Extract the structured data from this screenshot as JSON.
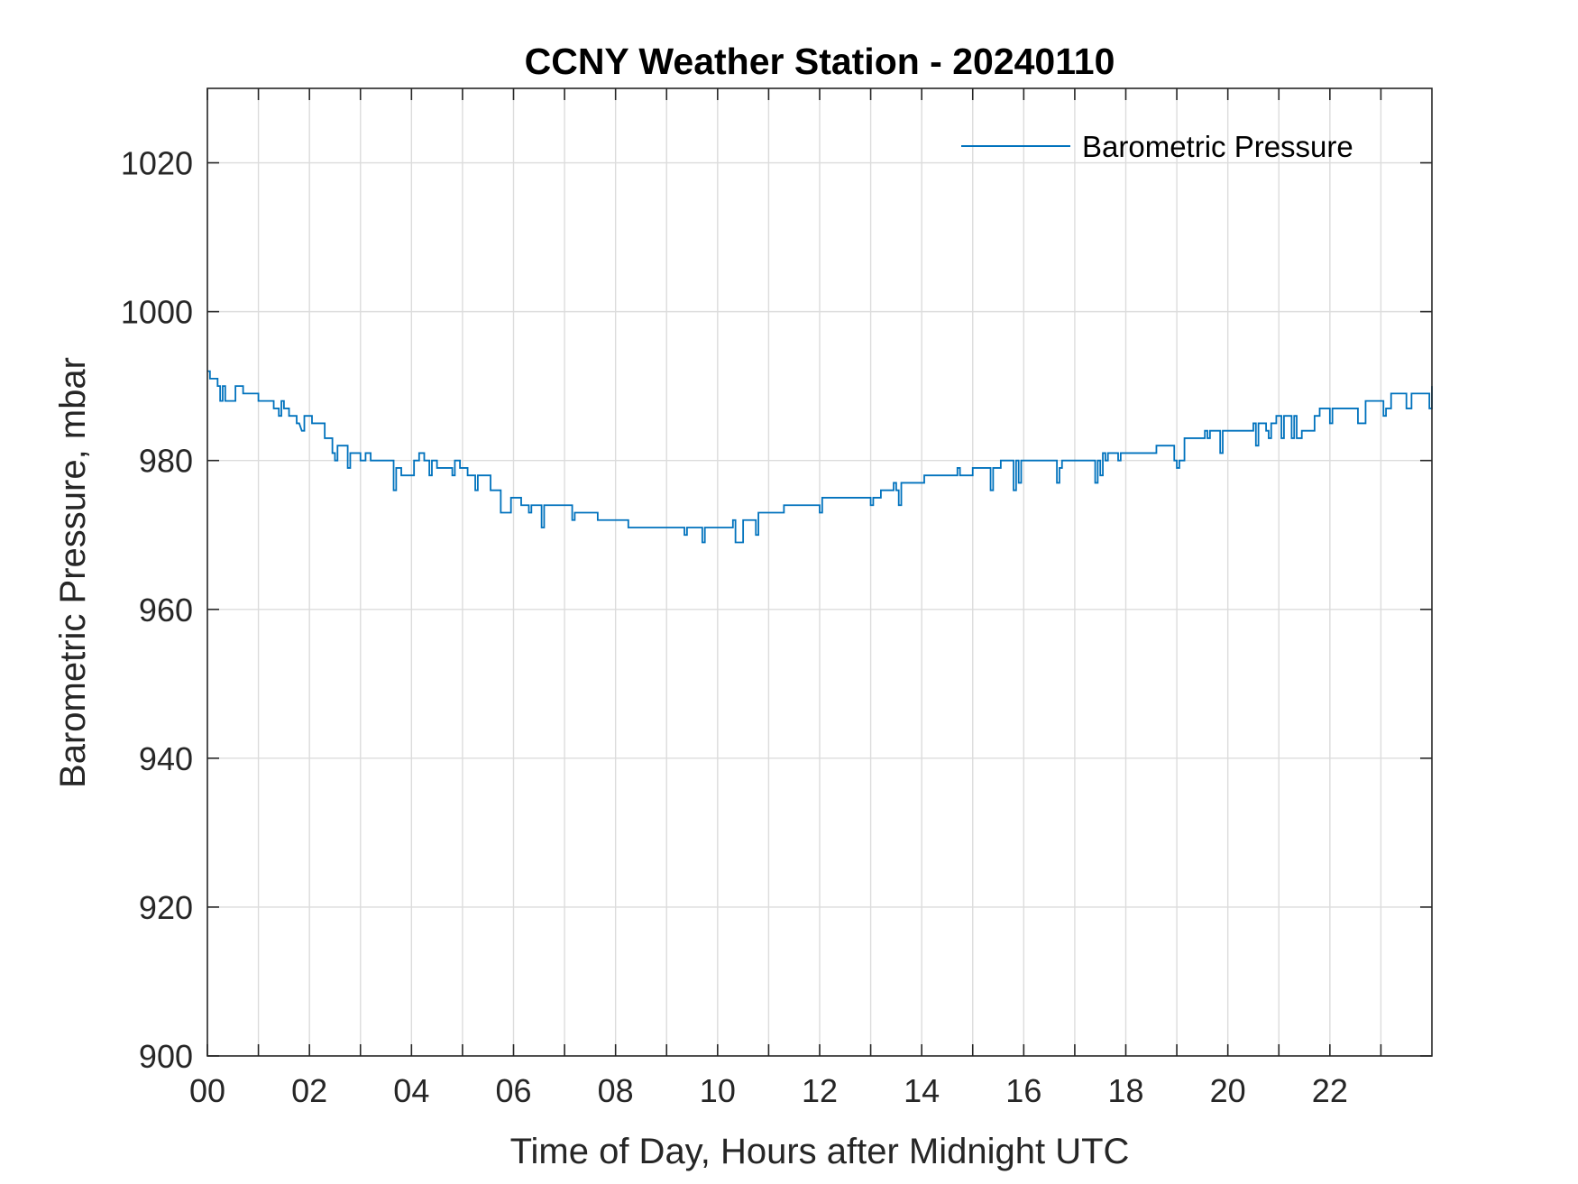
{
  "chart_data": {
    "type": "line",
    "title": "CCNY Weather Station - 20240110",
    "xlabel": "Time of Day, Hours after Midnight UTC",
    "ylabel": "Barometric Pressure, mbar",
    "xlim": [
      0,
      24
    ],
    "ylim": [
      900,
      1030
    ],
    "x_ticks": [
      0,
      2,
      4,
      6,
      8,
      10,
      12,
      14,
      16,
      18,
      20,
      22
    ],
    "x_tick_labels": [
      "00",
      "02",
      "04",
      "06",
      "08",
      "10",
      "12",
      "14",
      "16",
      "18",
      "20",
      "22"
    ],
    "x_minor_grid": [
      1,
      3,
      5,
      7,
      9,
      11,
      13,
      15,
      17,
      19,
      21,
      23
    ],
    "y_ticks": [
      900,
      920,
      940,
      960,
      980,
      1000,
      1020
    ],
    "y_tick_labels": [
      "900",
      "920",
      "940",
      "960",
      "980",
      "1000",
      "1020"
    ],
    "grid": true,
    "legend": {
      "position": "top-right",
      "entries": [
        "Barometric Pressure"
      ]
    },
    "series": [
      {
        "name": "Barometric Pressure",
        "color": "#0072BD",
        "points": [
          [
            0.0,
            992
          ],
          [
            0.05,
            992
          ],
          [
            0.05,
            991
          ],
          [
            0.2,
            991
          ],
          [
            0.2,
            990
          ],
          [
            0.25,
            990
          ],
          [
            0.25,
            988
          ],
          [
            0.3,
            988
          ],
          [
            0.3,
            990
          ],
          [
            0.35,
            990
          ],
          [
            0.35,
            988
          ],
          [
            0.55,
            988
          ],
          [
            0.55,
            990
          ],
          [
            0.7,
            990
          ],
          [
            0.7,
            989
          ],
          [
            1.0,
            989
          ],
          [
            1.0,
            988
          ],
          [
            1.3,
            988
          ],
          [
            1.3,
            987
          ],
          [
            1.4,
            987
          ],
          [
            1.4,
            986
          ],
          [
            1.45,
            986
          ],
          [
            1.45,
            988
          ],
          [
            1.5,
            988
          ],
          [
            1.5,
            987
          ],
          [
            1.6,
            987
          ],
          [
            1.6,
            986
          ],
          [
            1.75,
            986
          ],
          [
            1.75,
            985
          ],
          [
            1.8,
            985
          ],
          [
            1.85,
            984
          ],
          [
            1.9,
            984
          ],
          [
            1.9,
            986
          ],
          [
            2.05,
            986
          ],
          [
            2.05,
            985
          ],
          [
            2.3,
            985
          ],
          [
            2.3,
            983
          ],
          [
            2.45,
            983
          ],
          [
            2.45,
            981
          ],
          [
            2.5,
            981
          ],
          [
            2.5,
            980
          ],
          [
            2.55,
            980
          ],
          [
            2.55,
            982
          ],
          [
            2.75,
            982
          ],
          [
            2.75,
            979
          ],
          [
            2.8,
            979
          ],
          [
            2.8,
            981
          ],
          [
            3.0,
            981
          ],
          [
            3.0,
            980
          ],
          [
            3.1,
            980
          ],
          [
            3.1,
            981
          ],
          [
            3.2,
            981
          ],
          [
            3.2,
            980
          ],
          [
            3.65,
            980
          ],
          [
            3.65,
            976
          ],
          [
            3.7,
            976
          ],
          [
            3.7,
            979
          ],
          [
            3.8,
            979
          ],
          [
            3.8,
            978
          ],
          [
            4.05,
            978
          ],
          [
            4.05,
            980
          ],
          [
            4.15,
            980
          ],
          [
            4.15,
            981
          ],
          [
            4.25,
            981
          ],
          [
            4.25,
            980
          ],
          [
            4.35,
            980
          ],
          [
            4.35,
            978
          ],
          [
            4.4,
            978
          ],
          [
            4.4,
            980
          ],
          [
            4.5,
            980
          ],
          [
            4.5,
            979
          ],
          [
            4.8,
            979
          ],
          [
            4.8,
            978
          ],
          [
            4.85,
            978
          ],
          [
            4.85,
            980
          ],
          [
            4.95,
            980
          ],
          [
            4.95,
            979
          ],
          [
            5.1,
            979
          ],
          [
            5.1,
            978
          ],
          [
            5.25,
            978
          ],
          [
            5.25,
            976
          ],
          [
            5.3,
            976
          ],
          [
            5.3,
            978
          ],
          [
            5.55,
            978
          ],
          [
            5.55,
            976
          ],
          [
            5.75,
            976
          ],
          [
            5.75,
            973
          ],
          [
            5.95,
            973
          ],
          [
            5.95,
            975
          ],
          [
            6.15,
            975
          ],
          [
            6.15,
            974
          ],
          [
            6.3,
            974
          ],
          [
            6.3,
            973
          ],
          [
            6.35,
            973
          ],
          [
            6.35,
            974
          ],
          [
            6.55,
            974
          ],
          [
            6.55,
            971
          ],
          [
            6.6,
            971
          ],
          [
            6.6,
            974
          ],
          [
            7.15,
            974
          ],
          [
            7.15,
            972
          ],
          [
            7.2,
            972
          ],
          [
            7.2,
            973
          ],
          [
            7.65,
            973
          ],
          [
            7.65,
            972
          ],
          [
            8.25,
            972
          ],
          [
            8.25,
            971
          ],
          [
            9.35,
            971
          ],
          [
            9.35,
            970
          ],
          [
            9.4,
            970
          ],
          [
            9.4,
            971
          ],
          [
            9.7,
            971
          ],
          [
            9.7,
            969
          ],
          [
            9.75,
            969
          ],
          [
            9.75,
            971
          ],
          [
            10.3,
            971
          ],
          [
            10.3,
            972
          ],
          [
            10.35,
            972
          ],
          [
            10.35,
            969
          ],
          [
            10.5,
            969
          ],
          [
            10.5,
            972
          ],
          [
            10.75,
            972
          ],
          [
            10.75,
            970
          ],
          [
            10.8,
            970
          ],
          [
            10.8,
            973
          ],
          [
            11.3,
            973
          ],
          [
            11.3,
            974
          ],
          [
            12.0,
            974
          ],
          [
            12.0,
            973
          ],
          [
            12.05,
            973
          ],
          [
            12.05,
            975
          ],
          [
            13.0,
            975
          ],
          [
            13.0,
            974
          ],
          [
            13.05,
            974
          ],
          [
            13.05,
            975
          ],
          [
            13.2,
            975
          ],
          [
            13.2,
            976
          ],
          [
            13.45,
            976
          ],
          [
            13.45,
            977
          ],
          [
            13.5,
            977
          ],
          [
            13.5,
            976
          ],
          [
            13.55,
            976
          ],
          [
            13.55,
            974
          ],
          [
            13.6,
            974
          ],
          [
            13.6,
            977
          ],
          [
            14.05,
            977
          ],
          [
            14.05,
            978
          ],
          [
            14.7,
            978
          ],
          [
            14.7,
            979
          ],
          [
            14.75,
            979
          ],
          [
            14.75,
            978
          ],
          [
            15.0,
            978
          ],
          [
            15.0,
            979
          ],
          [
            15.35,
            979
          ],
          [
            15.35,
            976
          ],
          [
            15.4,
            976
          ],
          [
            15.4,
            979
          ],
          [
            15.55,
            979
          ],
          [
            15.55,
            980
          ],
          [
            15.8,
            980
          ],
          [
            15.8,
            976
          ],
          [
            15.85,
            976
          ],
          [
            15.85,
            980
          ],
          [
            15.9,
            980
          ],
          [
            15.9,
            977
          ],
          [
            15.95,
            977
          ],
          [
            15.95,
            980
          ],
          [
            16.65,
            980
          ],
          [
            16.65,
            977
          ],
          [
            16.7,
            977
          ],
          [
            16.7,
            979
          ],
          [
            16.75,
            979
          ],
          [
            16.75,
            980
          ],
          [
            17.4,
            980
          ],
          [
            17.4,
            977
          ],
          [
            17.45,
            977
          ],
          [
            17.45,
            980
          ],
          [
            17.5,
            980
          ],
          [
            17.5,
            978
          ],
          [
            17.55,
            978
          ],
          [
            17.55,
            981
          ],
          [
            17.6,
            981
          ],
          [
            17.6,
            980
          ],
          [
            17.65,
            980
          ],
          [
            17.65,
            981
          ],
          [
            17.85,
            981
          ],
          [
            17.85,
            980
          ],
          [
            17.9,
            980
          ],
          [
            17.9,
            981
          ],
          [
            18.6,
            981
          ],
          [
            18.6,
            982
          ],
          [
            18.95,
            982
          ],
          [
            18.95,
            980
          ],
          [
            19.0,
            980
          ],
          [
            19.0,
            979
          ],
          [
            19.05,
            979
          ],
          [
            19.05,
            980
          ],
          [
            19.15,
            980
          ],
          [
            19.15,
            983
          ],
          [
            19.55,
            983
          ],
          [
            19.55,
            984
          ],
          [
            19.6,
            984
          ],
          [
            19.6,
            983
          ],
          [
            19.65,
            983
          ],
          [
            19.65,
            984
          ],
          [
            19.85,
            984
          ],
          [
            19.85,
            981
          ],
          [
            19.9,
            981
          ],
          [
            19.9,
            984
          ],
          [
            20.5,
            984
          ],
          [
            20.5,
            985
          ],
          [
            20.55,
            985
          ],
          [
            20.55,
            982
          ],
          [
            20.6,
            982
          ],
          [
            20.6,
            985
          ],
          [
            20.75,
            985
          ],
          [
            20.75,
            984
          ],
          [
            20.8,
            984
          ],
          [
            20.8,
            983
          ],
          [
            20.85,
            983
          ],
          [
            20.85,
            985
          ],
          [
            20.95,
            985
          ],
          [
            20.95,
            986
          ],
          [
            21.05,
            986
          ],
          [
            21.05,
            983
          ],
          [
            21.1,
            983
          ],
          [
            21.1,
            986
          ],
          [
            21.25,
            986
          ],
          [
            21.25,
            983
          ],
          [
            21.3,
            983
          ],
          [
            21.3,
            986
          ],
          [
            21.35,
            986
          ],
          [
            21.35,
            983
          ],
          [
            21.45,
            983
          ],
          [
            21.45,
            984
          ],
          [
            21.7,
            984
          ],
          [
            21.7,
            986
          ],
          [
            21.8,
            986
          ],
          [
            21.8,
            987
          ],
          [
            22.0,
            987
          ],
          [
            22.0,
            985
          ],
          [
            22.05,
            985
          ],
          [
            22.05,
            987
          ],
          [
            22.55,
            987
          ],
          [
            22.55,
            985
          ],
          [
            22.7,
            985
          ],
          [
            22.7,
            988
          ],
          [
            23.05,
            988
          ],
          [
            23.05,
            986
          ],
          [
            23.1,
            986
          ],
          [
            23.1,
            987
          ],
          [
            23.2,
            987
          ],
          [
            23.2,
            989
          ],
          [
            23.5,
            989
          ],
          [
            23.5,
            987
          ],
          [
            23.6,
            987
          ],
          [
            23.6,
            989
          ],
          [
            23.95,
            989
          ],
          [
            23.95,
            987
          ],
          [
            24.0,
            987
          ],
          [
            24.0,
            990
          ]
        ]
      }
    ]
  }
}
